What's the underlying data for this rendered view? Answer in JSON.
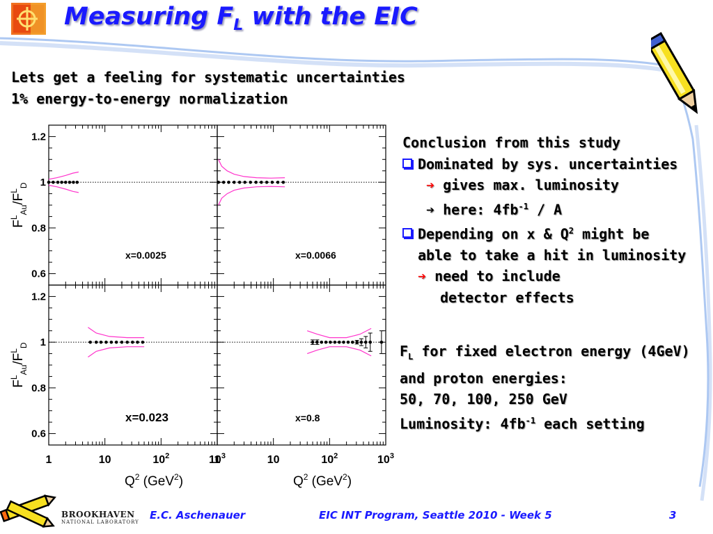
{
  "header": {
    "title_main": "Measuring F",
    "title_sub": "L",
    "title_rest": " with the EIC"
  },
  "subtitle": {
    "line1": "Lets get a feeling for systematic uncertainties",
    "line2": "1% energy-to-energy normalization"
  },
  "conclusion": {
    "heading": "Conclusion from this study",
    "b1": "Dominated by sys. uncertainties",
    "b1_a1": "gives max. luminosity",
    "b1_a2_pre": "here: 4fb",
    "b1_a2_sup": "-1",
    "b1_a2_post": " / A",
    "b2_l1_pre": "Depending on x & Q",
    "b2_l1_sup": "2",
    "b2_l1_post": " might be",
    "b2_l2": "able to take a hit in luminosity",
    "b2_a1": "need to include",
    "b2_a2": "detector effects"
  },
  "info": {
    "l1_pre": "F",
    "l1_sub": "L",
    "l1_post": " for fixed electron energy (4GeV)",
    "l2": "and proton energies:",
    "l3": "50, 70, 100, 250 GeV",
    "l4_pre": "Luminosity: 4fb",
    "l4_sup": "-1",
    "l4_post": " each setting"
  },
  "footer": {
    "author": "E.C. Aschenauer",
    "event": "EIC INT Program, Seattle 2010 - Week 5",
    "page": "3",
    "lab_name": "BROOKHAVEN",
    "lab_sub": "NATIONAL LABORATORY"
  },
  "colors": {
    "title": "#1a1aff",
    "arrow": "#ff0000",
    "band": "#ff33cc",
    "points": "#000000"
  },
  "chart_data": {
    "type": "scatter",
    "layout": "2x2 panels",
    "log_x": true,
    "xlim": [
      1,
      1000
    ],
    "ylim": [
      0.55,
      1.25
    ],
    "ylabel": "F^L_Au/F^L_D",
    "xlabel": "Q^2 (GeV^2)",
    "y_ticks": [
      "0.6",
      "0.8",
      "1",
      "1.2"
    ],
    "x_ticks": [
      "1",
      "10",
      "10^2",
      "10^3"
    ],
    "reference_line": 1,
    "panels": [
      {
        "label": "x=0.0025",
        "x": [
          1,
          1.2,
          1.45,
          1.7,
          2.0,
          2.35,
          2.75,
          3.2
        ],
        "y": [
          1,
          1,
          1,
          1,
          1,
          1,
          1,
          1
        ],
        "yerr": [
          0.003,
          0.003,
          0.003,
          0.003,
          0.003,
          0.003,
          0.003,
          0.003
        ],
        "band_x": [
          1,
          1.4,
          2.0,
          2.7,
          3.4
        ],
        "band_upper": [
          1.013,
          1.02,
          1.03,
          1.04,
          1.045
        ],
        "band_lower": [
          0.987,
          0.98,
          0.97,
          0.96,
          0.955
        ]
      },
      {
        "label": "x=0.0066",
        "x": [
          1.05,
          1.3,
          1.6,
          2.0,
          2.5,
          3.1,
          3.9,
          4.9,
          6.1,
          7.6,
          9.5,
          12,
          15
        ],
        "y": [
          1,
          1,
          1,
          1,
          1,
          1,
          1,
          1,
          1,
          1,
          1,
          1,
          1
        ],
        "yerr": [
          0.003,
          0.003,
          0.003,
          0.003,
          0.003,
          0.003,
          0.003,
          0.003,
          0.003,
          0.003,
          0.003,
          0.003,
          0.003
        ],
        "band_x": [
          1.05,
          1.2,
          1.5,
          2.0,
          3.0,
          5.0,
          9.0,
          16
        ],
        "band_upper": [
          1.1,
          1.07,
          1.05,
          1.035,
          1.025,
          1.02,
          1.018,
          1.02
        ],
        "band_lower": [
          0.9,
          0.93,
          0.95,
          0.965,
          0.975,
          0.98,
          0.982,
          0.98
        ]
      },
      {
        "label": "x=0.023",
        "x": [
          5.5,
          7,
          8.5,
          10.5,
          13,
          16,
          20,
          25,
          31,
          38,
          47
        ],
        "y": [
          1,
          1,
          1,
          1,
          1,
          1,
          1,
          1,
          1,
          1,
          1
        ],
        "yerr": [
          0.003,
          0.003,
          0.003,
          0.003,
          0.003,
          0.003,
          0.003,
          0.003,
          0.003,
          0.003,
          0.003
        ],
        "band_x": [
          5.0,
          7.0,
          12,
          25,
          50
        ],
        "band_upper": [
          1.065,
          1.04,
          1.025,
          1.02,
          1.02
        ],
        "band_lower": [
          0.935,
          0.96,
          0.975,
          0.98,
          0.98
        ]
      },
      {
        "label": "x=0.8",
        "x": [
          50,
          60,
          72,
          86,
          103,
          124,
          149,
          178,
          214,
          256,
          307,
          368,
          441,
          530,
          840
        ],
        "y": [
          1,
          1,
          1,
          1,
          1,
          1,
          1,
          1,
          1,
          1,
          1,
          1,
          1,
          1,
          1
        ],
        "yerr": [
          0.01,
          0.01,
          0.005,
          0.005,
          0.005,
          0.005,
          0.005,
          0.005,
          0.005,
          0.005,
          0.008,
          0.015,
          0.025,
          0.04,
          0.05
        ],
        "band_x": [
          40,
          60,
          100,
          200,
          350,
          550
        ],
        "band_upper": [
          1.05,
          1.035,
          1.02,
          1.02,
          1.035,
          1.06
        ],
        "band_lower": [
          0.95,
          0.965,
          0.98,
          0.98,
          0.965,
          0.94
        ]
      }
    ]
  }
}
